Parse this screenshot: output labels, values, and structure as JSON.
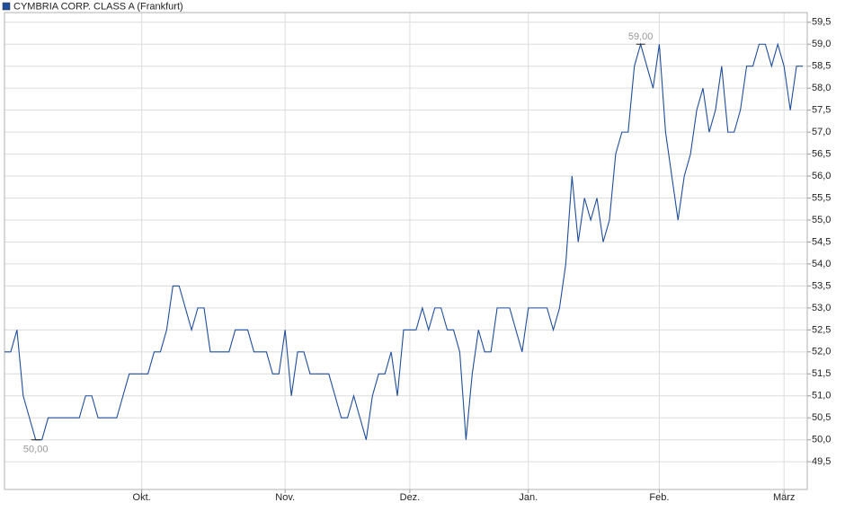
{
  "chart_data": {
    "type": "line",
    "categories": [
      null,
      null,
      null,
      null,
      null,
      null,
      null,
      null,
      null,
      null,
      null,
      null,
      null,
      null,
      null,
      null,
      null,
      null,
      null,
      null,
      null,
      null,
      "Okt.",
      null,
      null,
      null,
      null,
      null,
      null,
      null,
      null,
      null,
      null,
      null,
      null,
      null,
      null,
      null,
      null,
      null,
      null,
      null,
      null,
      null,
      null,
      "Nov.",
      null,
      null,
      null,
      null,
      null,
      null,
      null,
      null,
      null,
      null,
      null,
      null,
      null,
      null,
      null,
      null,
      null,
      null,
      null,
      "Dez.",
      null,
      null,
      null,
      null,
      null,
      null,
      null,
      null,
      null,
      null,
      null,
      null,
      null,
      null,
      null,
      null,
      null,
      null,
      "Jan.",
      null,
      null,
      null,
      null,
      null,
      null,
      null,
      null,
      null,
      null,
      null,
      null,
      null,
      null,
      null,
      null,
      null,
      null,
      null,
      null,
      "Feb.",
      null,
      null,
      null,
      null,
      null,
      null,
      null,
      null,
      null,
      null,
      null,
      null,
      null,
      null,
      null,
      null,
      null,
      null,
      null,
      "März",
      null,
      null,
      null
    ],
    "series": [
      {
        "name": "CYMBRIA CORP. CLASS A (Frankfurt)",
        "color": "#1f4e9a",
        "values": [
          52,
          52,
          52.5,
          51,
          50.5,
          50,
          50,
          50.5,
          50.5,
          50.5,
          50.5,
          50.5,
          50.5,
          51,
          51,
          50.5,
          50.5,
          50.5,
          50.5,
          51,
          51.5,
          51.5,
          51.5,
          51.5,
          52,
          52,
          52.5,
          53.5,
          53.5,
          53,
          52.5,
          53,
          53,
          52,
          52,
          52,
          52,
          52.5,
          52.5,
          52.5,
          52,
          52,
          52,
          51.5,
          51.5,
          52.5,
          51,
          52,
          52,
          51.5,
          51.5,
          51.5,
          51.5,
          51,
          50.5,
          50.5,
          51,
          50.5,
          50,
          51,
          51.5,
          51.5,
          52,
          51,
          52.5,
          52.5,
          52.5,
          53,
          52.5,
          53,
          53,
          52.5,
          52.5,
          52,
          50,
          51.5,
          52.5,
          52,
          52,
          53,
          53,
          53,
          52.5,
          52,
          53,
          53,
          53,
          53,
          52.5,
          53,
          54,
          56,
          54.5,
          55.5,
          55,
          55.5,
          54.5,
          55,
          56.5,
          57,
          57,
          58.5,
          59,
          58.5,
          58,
          59,
          57,
          56,
          55,
          56,
          56.5,
          57.5,
          58,
          57,
          57.5,
          58.5,
          57,
          57,
          57.5,
          58.5,
          58.5,
          59,
          59,
          58.5,
          59,
          58.5,
          57.5,
          58.5,
          58.5
        ],
        "value_labels": [
          null,
          null,
          null,
          null,
          null,
          "50,00",
          null,
          null,
          null,
          null,
          null,
          null,
          null,
          null,
          null,
          null,
          null,
          null,
          null,
          null,
          null,
          null,
          null,
          null,
          null,
          null,
          null,
          null,
          null,
          null,
          null,
          null,
          null,
          null,
          null,
          null,
          null,
          null,
          null,
          null,
          null,
          null,
          null,
          null,
          null,
          null,
          null,
          null,
          null,
          null,
          null,
          null,
          null,
          null,
          null,
          null,
          null,
          null,
          null,
          null,
          null,
          null,
          null,
          null,
          null,
          null,
          null,
          null,
          null,
          null,
          null,
          null,
          null,
          null,
          null,
          null,
          null,
          null,
          null,
          null,
          null,
          null,
          null,
          null,
          null,
          null,
          null,
          null,
          null,
          null,
          null,
          null,
          null,
          null,
          null,
          null,
          null,
          null,
          null,
          null,
          null,
          null,
          "59,00",
          null,
          null,
          null,
          null,
          null,
          null,
          null,
          null,
          null,
          null,
          null,
          null,
          null,
          null,
          null,
          null,
          null,
          null,
          null,
          null,
          null,
          null,
          null,
          null,
          null,
          null
        ]
      }
    ],
    "ylim": [
      48.87,
      59.72
    ],
    "yticks": [
      {
        "value": 49.5,
        "label": "49,5"
      },
      {
        "value": 50,
        "label": "50,0"
      },
      {
        "value": 50.5,
        "label": "50,5"
      },
      {
        "value": 51,
        "label": "51,0"
      },
      {
        "value": 51.5,
        "label": "51,5"
      },
      {
        "value": 52,
        "label": "52,0"
      },
      {
        "value": 52.5,
        "label": "52,5"
      },
      {
        "value": 53,
        "label": "53,0"
      },
      {
        "value": 53.5,
        "label": "53,5"
      },
      {
        "value": 54,
        "label": "54,0"
      },
      {
        "value": 54.5,
        "label": "54,5"
      },
      {
        "value": 55,
        "label": "55,0"
      },
      {
        "value": 55.5,
        "label": "55,5"
      },
      {
        "value": 56,
        "label": "56,0"
      },
      {
        "value": 56.5,
        "label": "56,5"
      },
      {
        "value": 57,
        "label": "57,0"
      },
      {
        "value": 57.5,
        "label": "57,5"
      },
      {
        "value": 58,
        "label": "58,0"
      },
      {
        "value": 58.5,
        "label": "58,5"
      },
      {
        "value": 59,
        "label": "59,0"
      },
      {
        "value": 59.5,
        "label": "59,5"
      }
    ],
    "grid": true,
    "legend": "top-left"
  }
}
